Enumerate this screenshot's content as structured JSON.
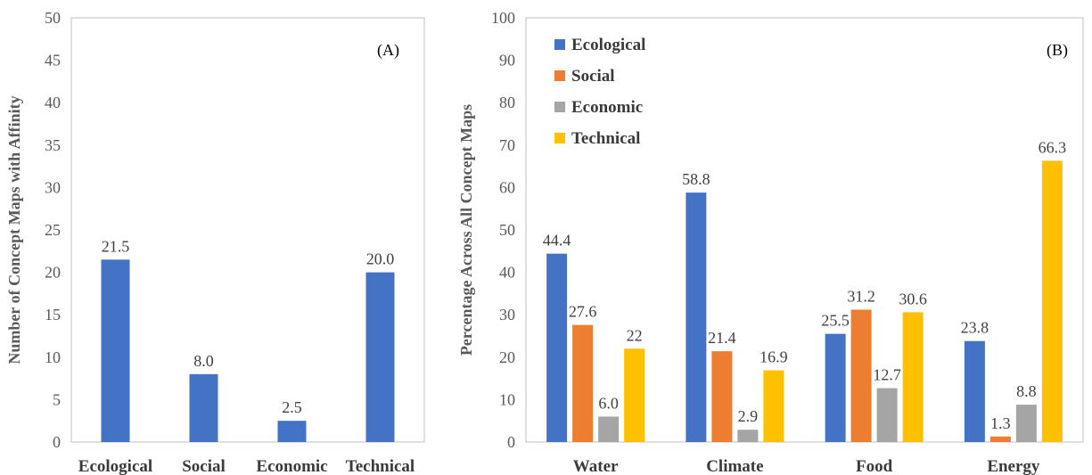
{
  "colors": {
    "Ecological": "#4472C4",
    "Social": "#ED7D31",
    "Economic": "#A5A5A5",
    "Technical": "#FFC000",
    "axis_text": "#595959",
    "frame": "#bfbfbf"
  },
  "chart_data": [
    {
      "type": "bar",
      "panel_label": "(A)",
      "ylabel": "Number of Concept Maps with Affinity",
      "ylim": [
        0,
        50
      ],
      "yticks": [
        0,
        5,
        10,
        15,
        20,
        25,
        30,
        35,
        40,
        45,
        50
      ],
      "categories": [
        "Ecological",
        "Social",
        "Economic",
        "Technical"
      ],
      "values": [
        21.5,
        8.0,
        2.5,
        20.0
      ],
      "data_labels": [
        "21.5",
        "8.0",
        "2.5",
        "20.0"
      ],
      "grid": false
    },
    {
      "type": "bar",
      "panel_label": "(B)",
      "ylabel": "Percentage Across All Concept Maps",
      "ylim": [
        0,
        100
      ],
      "yticks": [
        0,
        10,
        20,
        30,
        40,
        50,
        60,
        70,
        80,
        90,
        100
      ],
      "categories": [
        "Water",
        "Climate",
        "Food",
        "Energy"
      ],
      "legend_position": "top-left",
      "grid": false,
      "series": [
        {
          "name": "Ecological",
          "values": [
            44.4,
            58.8,
            25.5,
            23.8
          ],
          "labels": [
            "44.4",
            "58.8",
            "25.5",
            "23.8"
          ]
        },
        {
          "name": "Social",
          "values": [
            27.6,
            21.4,
            31.2,
            1.3
          ],
          "labels": [
            "27.6",
            "21.4",
            "31.2",
            "1.3"
          ]
        },
        {
          "name": "Economic",
          "values": [
            6.0,
            2.9,
            12.7,
            8.8
          ],
          "labels": [
            "6.0",
            "2.9",
            "12.7",
            "8.8"
          ]
        },
        {
          "name": "Technical",
          "values": [
            22,
            16.9,
            30.6,
            66.3
          ],
          "labels": [
            "22",
            "16.9",
            "30.6",
            "66.3"
          ]
        }
      ]
    }
  ]
}
